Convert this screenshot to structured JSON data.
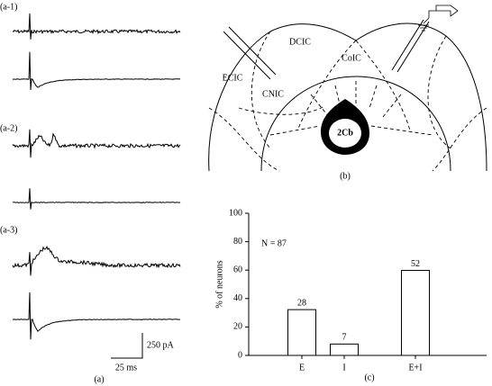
{
  "panel_a": {
    "labels": [
      "(a-1)",
      "(a-2)",
      "(a-3)"
    ],
    "scale_current": "250 pA",
    "scale_time": "25 ms",
    "caption": "(a)"
  },
  "panel_b": {
    "regions": [
      "DCIC",
      "ECIC",
      "CoIC",
      "CNIC",
      "2Cb"
    ],
    "caption": "(b)"
  },
  "chart_data": {
    "type": "bar",
    "ylabel": "% of neurons",
    "annotation": "N = 87",
    "categories": [
      "E",
      "I",
      "E+I"
    ],
    "values": [
      32.2,
      8.0,
      59.8
    ],
    "counts": [
      28,
      7,
      52
    ],
    "color": "#ffffff",
    "ylim": [
      0,
      100
    ],
    "yticks": [
      0,
      20,
      40,
      60,
      80,
      100
    ],
    "caption": "(c)"
  }
}
